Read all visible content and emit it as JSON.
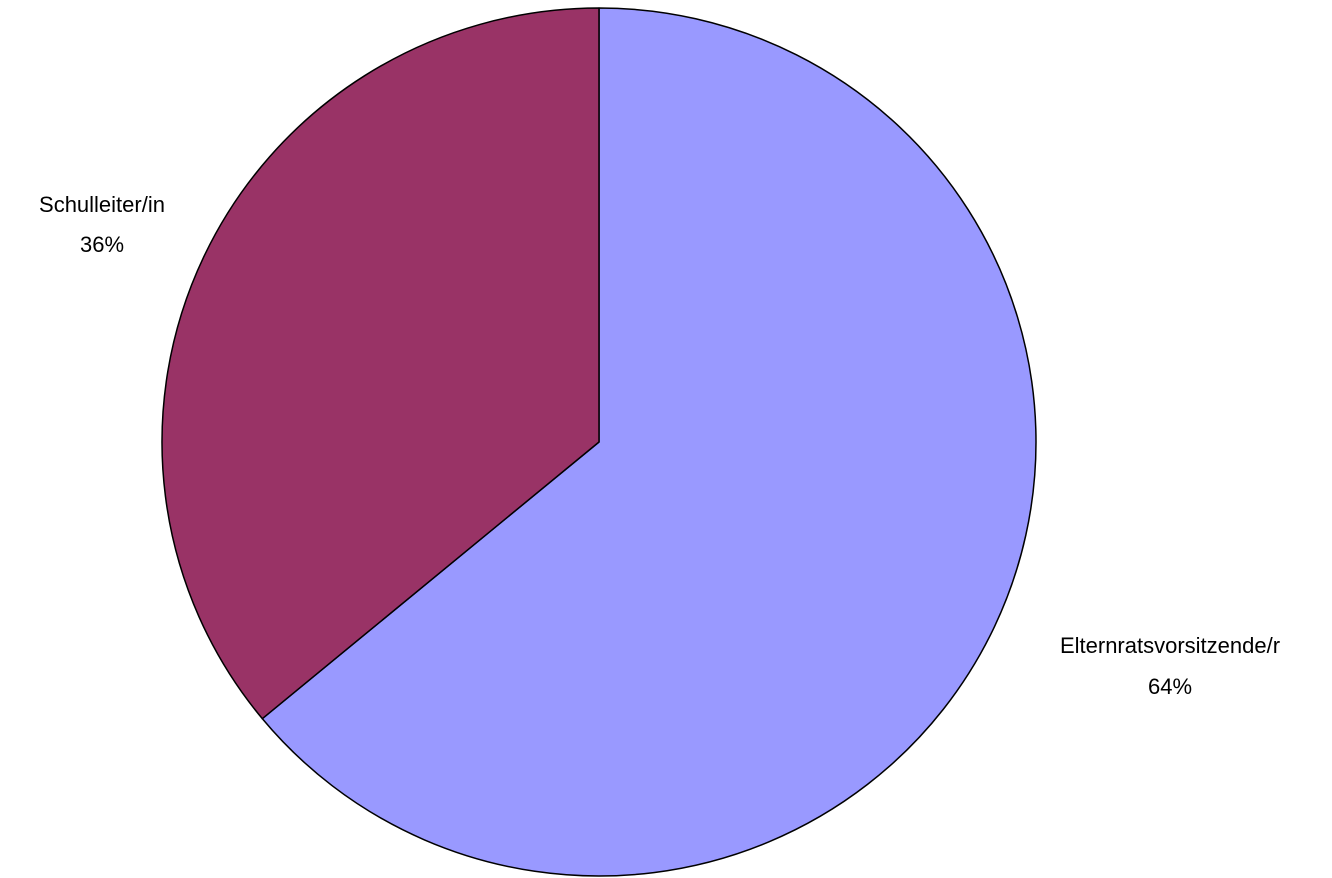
{
  "chart_data": {
    "type": "pie",
    "title": "",
    "start_angle_deg": 0,
    "direction": "clockwise",
    "slices": [
      {
        "label": "Elternratsvorsitzende/r",
        "value": 64,
        "value_label": "64%",
        "color": "#9999ff"
      },
      {
        "label": "Schulleiter/in",
        "value": 36,
        "value_label": "36%",
        "color": "#993366"
      }
    ],
    "border_color": "#000000"
  }
}
